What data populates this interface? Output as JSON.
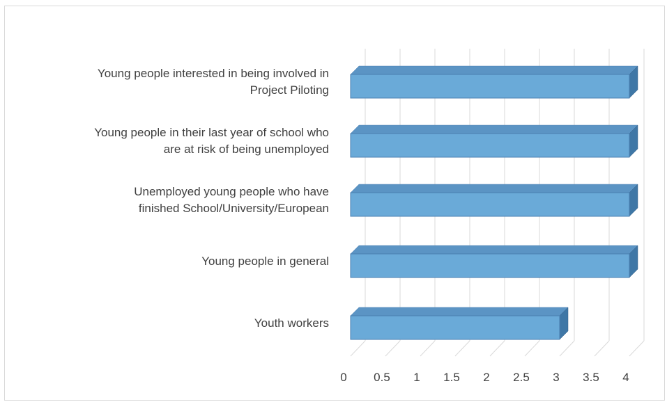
{
  "chart_data": {
    "type": "bar",
    "orientation": "horizontal",
    "style": "3d",
    "categories": [
      "Young people interested in being involved in\nProject Piloting",
      "Young people in their last year of school who\nare at risk of being unemployed",
      "Unemployed young people who have\nfinished School/University/European",
      "Young people in general",
      "Youth workers"
    ],
    "values": [
      4,
      4,
      4,
      4,
      3
    ],
    "xlim": [
      0,
      4
    ],
    "xticks": [
      "0",
      "0.5",
      "1",
      "1.5",
      "2",
      "2.5",
      "3",
      "3.5",
      "4"
    ],
    "title": "",
    "xlabel": "",
    "ylabel": "",
    "grid": true,
    "colors": {
      "bar_front": "#6aaad8",
      "bar_top": "#5b94c4",
      "bar_side": "#3f77a6",
      "grid": "#d9d9d9",
      "text": "#404040"
    }
  }
}
